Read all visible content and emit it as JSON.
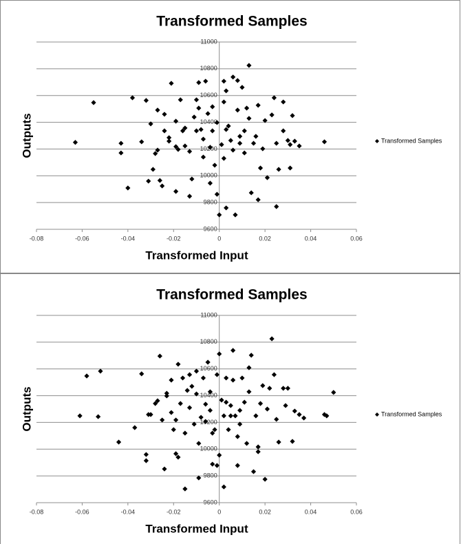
{
  "chart_data": [
    {
      "type": "scatter",
      "title": "Transformed Samples",
      "xlabel": "Transformed Input",
      "ylabel": "Outputs",
      "xlim": [
        -0.08,
        0.06
      ],
      "xticks": [
        -0.08,
        -0.06,
        -0.04,
        -0.02,
        0,
        0.02,
        0.04,
        0.06
      ],
      "ylim": [
        9600,
        11000
      ],
      "yticks": [
        9600,
        9800,
        10000,
        10200,
        10400,
        10600,
        10800,
        11000
      ],
      "grid": true,
      "legend": "right",
      "series": [
        {
          "name": "Transformed Samples",
          "color": "#000000",
          "x": [
            0.013,
            -0.063,
            -0.055,
            -0.043,
            -0.043,
            -0.04,
            -0.038,
            -0.034,
            -0.032,
            -0.031,
            -0.03,
            -0.028,
            -0.027,
            -0.027,
            -0.029,
            -0.026,
            -0.025,
            -0.024,
            -0.024,
            -0.022,
            -0.022,
            -0.021,
            -0.019,
            -0.019,
            -0.018,
            -0.017,
            -0.019,
            -0.016,
            -0.015,
            -0.015,
            -0.013,
            -0.013,
            -0.012,
            -0.011,
            -0.01,
            -0.01,
            -0.009,
            -0.009,
            -0.008,
            -0.007,
            -0.007,
            -0.006,
            -0.005,
            -0.004,
            -0.004,
            -0.003,
            -0.003,
            -0.002,
            -0.001,
            -0.001,
            0,
            0.001,
            0.002,
            0.002,
            0.002,
            0.003,
            0.003,
            0.003,
            0.004,
            0.005,
            0.006,
            0.006,
            0.007,
            0.008,
            0.008,
            0.009,
            0.009,
            0.01,
            0.011,
            0.011,
            0.012,
            0.013,
            0.014,
            0.015,
            0.016,
            0.017,
            0.017,
            0.018,
            0.019,
            0.02,
            0.021,
            0.023,
            0.024,
            0.025,
            0.025,
            0.026,
            0.028,
            0.028,
            0.03,
            0.031,
            0.031,
            0.032,
            0.033,
            0.035,
            0.046
          ],
          "values": [
            10825,
            10250,
            10547,
            10171,
            10243,
            9909,
            10583,
            10254,
            10563,
            9960,
            10388,
            10166,
            10491,
            10192,
            10048,
            9965,
            9924,
            10460,
            10336,
            10285,
            10259,
            10691,
            10408,
            10218,
            10197,
            10568,
            9883,
            10336,
            10357,
            10223,
            10182,
            9847,
            9976,
            10439,
            10336,
            10568,
            10506,
            10697,
            10346,
            10274,
            10140,
            10707,
            10465,
            10213,
            9945,
            10336,
            10516,
            10079,
            10398,
            9862,
            9708,
            10233,
            10130,
            10707,
            10552,
            10346,
            9760,
            10635,
            10372,
            10264,
            10192,
            10738,
            9708,
            10491,
            10712,
            10295,
            10243,
            10661,
            10171,
            10336,
            10506,
            10429,
            9873,
            10243,
            10295,
            10527,
            9821,
            10058,
            10202,
            10413,
            9986,
            10455,
            10583,
            9770,
            10243,
            10048,
            10552,
            10336,
            10264,
            10058,
            10233,
            10450,
            10259,
            10223,
            10254
          ]
        }
      ]
    },
    {
      "type": "scatter",
      "title": "Transformed Samples",
      "xlabel": "Transformed Input",
      "ylabel": "Outputs",
      "xlim": [
        -0.08,
        0.06
      ],
      "xticks": [
        -0.08,
        -0.06,
        -0.04,
        -0.02,
        0,
        0.02,
        0.04,
        0.06
      ],
      "ylim": [
        9600,
        11000
      ],
      "yticks": [
        9600,
        9800,
        10000,
        10200,
        10400,
        10600,
        10800,
        11000
      ],
      "grid": true,
      "legend": "right",
      "series": [
        {
          "name": "Transformed Samples",
          "color": "#000000",
          "x": [
            -0.061,
            -0.058,
            -0.053,
            -0.052,
            -0.044,
            -0.037,
            -0.034,
            -0.032,
            -0.032,
            -0.031,
            -0.03,
            -0.028,
            -0.027,
            -0.026,
            -0.025,
            -0.024,
            -0.023,
            -0.023,
            -0.021,
            -0.021,
            -0.02,
            -0.019,
            -0.019,
            -0.018,
            -0.018,
            -0.017,
            -0.016,
            -0.015,
            -0.015,
            -0.014,
            -0.013,
            -0.013,
            -0.012,
            -0.011,
            -0.01,
            -0.01,
            -0.009,
            -0.009,
            -0.008,
            -0.007,
            -0.006,
            -0.006,
            -0.005,
            -0.004,
            -0.004,
            -0.003,
            -0.003,
            -0.002,
            -0.001,
            -0.001,
            0,
            0,
            0.001,
            0.002,
            0.002,
            0.003,
            0.003,
            0.004,
            0.005,
            0.005,
            0.006,
            0.006,
            0.007,
            0.008,
            0.008,
            0.009,
            0.009,
            0.01,
            0.011,
            0.012,
            0.013,
            0.013,
            0.014,
            0.015,
            0.016,
            0.017,
            0.017,
            0.018,
            0.019,
            0.02,
            0.021,
            0.022,
            0.023,
            0.024,
            0.025,
            0.026,
            0.028,
            0.029,
            0.03,
            0.032,
            0.033,
            0.035,
            0.037,
            0.046,
            0.047,
            0.05
          ],
          "values": [
            10249,
            10547,
            10243,
            10583,
            10053,
            10161,
            10563,
            9960,
            9914,
            10259,
            10259,
            10341,
            10362,
            10696,
            10218,
            9852,
            10418,
            10398,
            10516,
            10274,
            10146,
            9966,
            10218,
            9940,
            10635,
            10341,
            10532,
            10120,
            9703,
            10439,
            10557,
            10310,
            10470,
            10187,
            10583,
            10413,
            9785,
            10043,
            10238,
            10532,
            10336,
            10207,
            10650,
            10290,
            10429,
            10120,
            9888,
            10146,
            9878,
            10557,
            10712,
            9955,
            10367,
            10249,
            9718,
            10351,
            10532,
            10146,
            10249,
            10326,
            10738,
            10516,
            10249,
            9878,
            10094,
            10290,
            10187,
            10532,
            10351,
            10043,
            10429,
            10609,
            10702,
            9832,
            10249,
            10017,
            9981,
            10341,
            10475,
            9775,
            10300,
            10455,
            10825,
            10557,
            10223,
            10053,
            10455,
            10326,
            10455,
            10058,
            10285,
            10259,
            10233,
            10259,
            10249,
            10424
          ]
        }
      ]
    }
  ]
}
